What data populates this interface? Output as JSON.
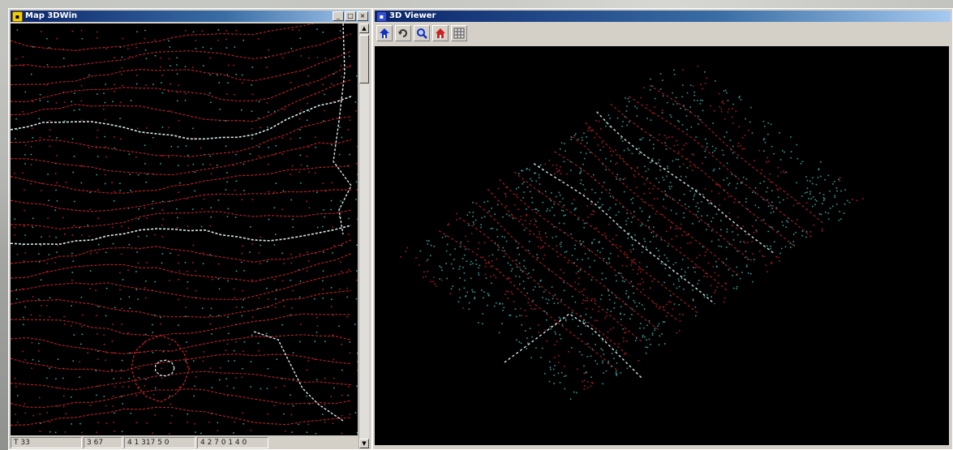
{
  "left_window": {
    "title": "Map 3DWin",
    "title_icon": "map-window-icon",
    "status": [
      "T 33",
      "3 67",
      "4 1 317 5 0",
      "4 2 7 0 1 4 0"
    ]
  },
  "right_window": {
    "title": "3D Viewer",
    "title_icon": "viewer-window-icon",
    "toolbar": [
      {
        "name": "home-up-icon",
        "color": "#1030c0"
      },
      {
        "name": "rotate-icon",
        "color": "#303030"
      },
      {
        "name": "zoom-icon",
        "color": "#1030c0"
      },
      {
        "name": "home-icon",
        "color": "#d02020"
      },
      {
        "name": "grid-icon",
        "color": "#505050"
      }
    ]
  },
  "colors": {
    "contour_major": "#c0202a",
    "contour_index": "#d8e8e8",
    "points": "#3fb3a8",
    "background": "#000000"
  }
}
